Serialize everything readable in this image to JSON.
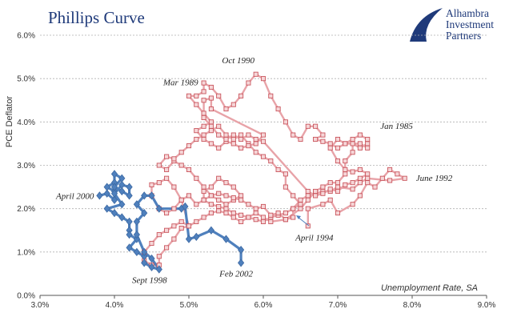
{
  "chart_data": {
    "type": "scatter",
    "title": "Phillips Curve",
    "xlabel": "Unemployment Rate, SA",
    "ylabel": "PCE Deflator",
    "xlim": [
      3.0,
      9.0
    ],
    "ylim": [
      0.0,
      6.0
    ],
    "x_ticks": [
      "3.0%",
      "4.0%",
      "5.0%",
      "6.0%",
      "7.0%",
      "8.0%",
      "9.0%"
    ],
    "y_ticks": [
      "0.0%",
      "1.0%",
      "2.0%",
      "3.0%",
      "4.0%",
      "5.0%",
      "6.0%"
    ],
    "grid": true,
    "series": [
      {
        "color": "#e8a3a8",
        "marker": "square",
        "points": [
          [
            6.6,
            1.6
          ],
          [
            6.6,
            2.0
          ],
          [
            6.8,
            2.1
          ],
          [
            6.9,
            2.2
          ],
          [
            7.0,
            1.9
          ],
          [
            7.2,
            2.1
          ],
          [
            7.3,
            2.3
          ],
          [
            7.4,
            2.6
          ],
          [
            7.5,
            2.5
          ],
          [
            7.6,
            2.7
          ],
          [
            7.7,
            2.9
          ],
          [
            7.8,
            2.8
          ],
          [
            7.9,
            2.7
          ],
          [
            7.7,
            2.65
          ],
          [
            7.4,
            2.7
          ],
          [
            7.3,
            2.6
          ],
          [
            7.2,
            2.45
          ],
          [
            7.0,
            2.5
          ],
          [
            6.9,
            2.4
          ],
          [
            6.8,
            2.4
          ],
          [
            6.7,
            2.35
          ],
          [
            6.6,
            2.3
          ],
          [
            6.5,
            2.2
          ],
          [
            6.4,
            2.0
          ],
          [
            6.4,
            1.8
          ],
          [
            6.3,
            1.75
          ],
          [
            6.1,
            1.7
          ],
          [
            6.0,
            1.8
          ],
          [
            5.9,
            1.9
          ],
          [
            5.8,
            1.8
          ],
          [
            5.7,
            1.85
          ],
          [
            5.6,
            1.9
          ],
          [
            5.5,
            2.0
          ],
          [
            5.4,
            2.05
          ],
          [
            5.3,
            2.1
          ],
          [
            5.2,
            2.2
          ],
          [
            5.2,
            2.4
          ],
          [
            5.3,
            2.5
          ],
          [
            5.4,
            2.7
          ],
          [
            5.5,
            2.6
          ],
          [
            5.6,
            2.5
          ],
          [
            5.7,
            2.3
          ],
          [
            5.6,
            2.2
          ],
          [
            5.5,
            2.1
          ],
          [
            5.4,
            2.2
          ],
          [
            5.3,
            2.3
          ],
          [
            5.2,
            2.5
          ],
          [
            5.1,
            2.7
          ],
          [
            5.0,
            2.9
          ],
          [
            4.9,
            3.0
          ],
          [
            4.8,
            3.1
          ],
          [
            4.7,
            2.9
          ],
          [
            4.6,
            3.0
          ],
          [
            4.7,
            3.2
          ],
          [
            4.8,
            3.15
          ],
          [
            4.9,
            3.3
          ],
          [
            5.0,
            3.45
          ],
          [
            5.1,
            3.6
          ],
          [
            5.2,
            3.7
          ],
          [
            5.3,
            3.8
          ],
          [
            5.4,
            3.9
          ],
          [
            5.5,
            3.7
          ],
          [
            5.6,
            3.6
          ],
          [
            5.7,
            3.7
          ],
          [
            5.8,
            3.5
          ],
          [
            5.9,
            3.3
          ],
          [
            6.0,
            3.2
          ],
          [
            6.1,
            3.1
          ],
          [
            6.2,
            2.9
          ],
          [
            6.3,
            2.8
          ],
          [
            6.3,
            2.5
          ],
          [
            6.4,
            2.3
          ],
          [
            6.5,
            2.1
          ],
          [
            6.4,
            2.0
          ],
          [
            6.3,
            1.9
          ],
          [
            6.2,
            1.85
          ],
          [
            6.1,
            1.8
          ],
          [
            6.0,
            1.7
          ],
          [
            5.9,
            1.75
          ],
          [
            5.8,
            1.8
          ],
          [
            5.7,
            1.7
          ],
          [
            5.6,
            1.8
          ],
          [
            5.5,
            1.9
          ],
          [
            5.4,
            1.95
          ],
          [
            5.3,
            1.9
          ],
          [
            5.2,
            1.8
          ],
          [
            5.1,
            1.7
          ],
          [
            5.0,
            1.6
          ],
          [
            4.9,
            1.7
          ],
          [
            4.8,
            1.6
          ],
          [
            4.7,
            1.5
          ],
          [
            4.6,
            1.4
          ],
          [
            4.5,
            1.2
          ],
          [
            4.4,
            1.0
          ],
          [
            4.4,
            0.8
          ],
          [
            4.5,
            0.7
          ],
          [
            4.6,
            0.7
          ],
          [
            4.6,
            0.9
          ],
          [
            4.7,
            1.1
          ],
          [
            4.8,
            1.3
          ],
          [
            4.9,
            1.55
          ],
          [
            5.0,
            1.6
          ],
          [
            4.9,
            2.2
          ],
          [
            4.8,
            2.5
          ],
          [
            4.7,
            2.7
          ],
          [
            4.6,
            2.6
          ],
          [
            4.5,
            2.55
          ],
          [
            4.5,
            2.3
          ],
          [
            4.6,
            2.0
          ],
          [
            4.7,
            1.9
          ],
          [
            4.8,
            2.0
          ],
          [
            4.9,
            2.2
          ],
          [
            5.0,
            2.3
          ],
          [
            5.1,
            2.1
          ],
          [
            5.2,
            2.2
          ],
          [
            5.3,
            2.3
          ],
          [
            5.4,
            2.35
          ],
          [
            5.5,
            2.3
          ],
          [
            5.6,
            2.25
          ],
          [
            5.7,
            2.2
          ],
          [
            5.8,
            2.1
          ],
          [
            5.9,
            2.0
          ],
          [
            6.0,
            2.05
          ],
          [
            6.1,
            1.85
          ],
          [
            6.2,
            1.9
          ],
          [
            6.3,
            1.75
          ],
          [
            6.5,
            2.0
          ],
          [
            6.6,
            2.2
          ],
          [
            6.7,
            2.4
          ],
          [
            6.8,
            2.5
          ],
          [
            6.9,
            2.6
          ],
          [
            7.0,
            2.6
          ],
          [
            7.1,
            2.8
          ],
          [
            7.1,
            3.1
          ],
          [
            7.2,
            3.3
          ],
          [
            7.2,
            3.5
          ],
          [
            7.3,
            3.4
          ],
          [
            7.4,
            3.5
          ],
          [
            7.4,
            3.6
          ],
          [
            7.3,
            3.7
          ],
          [
            7.2,
            3.6
          ],
          [
            7.1,
            3.5
          ],
          [
            7.0,
            3.4
          ],
          [
            6.9,
            3.5
          ],
          [
            6.8,
            3.55
          ],
          [
            6.7,
            3.6
          ],
          [
            6.8,
            3.7
          ],
          [
            6.7,
            3.9
          ],
          [
            6.6,
            3.9
          ],
          [
            6.5,
            3.6
          ],
          [
            6.4,
            3.7
          ],
          [
            6.3,
            4.0
          ],
          [
            6.2,
            4.3
          ],
          [
            6.1,
            4.6
          ],
          [
            6.0,
            5.0
          ],
          [
            5.9,
            5.1
          ],
          [
            5.8,
            4.9
          ],
          [
            5.7,
            4.6
          ],
          [
            5.6,
            4.4
          ],
          [
            5.5,
            4.3
          ],
          [
            5.4,
            4.6
          ],
          [
            5.3,
            4.8
          ],
          [
            5.2,
            4.9
          ],
          [
            5.2,
            4.7
          ],
          [
            5.1,
            4.6
          ],
          [
            5.0,
            4.6
          ],
          [
            5.1,
            4.4
          ],
          [
            5.2,
            4.2
          ],
          [
            5.3,
            4.0
          ],
          [
            5.2,
            3.9
          ],
          [
            5.1,
            3.8
          ],
          [
            5.2,
            3.6
          ],
          [
            5.3,
            3.5
          ],
          [
            5.4,
            3.4
          ],
          [
            5.5,
            3.55
          ],
          [
            5.6,
            3.5
          ],
          [
            5.7,
            3.4
          ],
          [
            5.8,
            3.45
          ],
          [
            5.9,
            3.5
          ],
          [
            6.0,
            3.7
          ],
          [
            5.3,
            4.3
          ],
          [
            5.3,
            4.55
          ],
          [
            5.2,
            4.5
          ],
          [
            5.2,
            4.1
          ],
          [
            5.3,
            3.9
          ],
          [
            5.4,
            3.7
          ],
          [
            5.5,
            3.6
          ],
          [
            5.6,
            3.7
          ],
          [
            5.7,
            3.6
          ],
          [
            5.8,
            3.7
          ],
          [
            5.9,
            3.6
          ],
          [
            6.0,
            3.55
          ],
          [
            6.6,
            2.4
          ],
          [
            6.7,
            2.3
          ],
          [
            6.8,
            2.35
          ],
          [
            6.9,
            2.45
          ],
          [
            7.0,
            2.4
          ],
          [
            7.1,
            2.55
          ],
          [
            7.2,
            2.6
          ],
          [
            7.3,
            2.7
          ],
          [
            7.4,
            2.8
          ],
          [
            7.3,
            2.9
          ],
          [
            7.2,
            2.85
          ],
          [
            7.1,
            2.9
          ],
          [
            7.0,
            3.1
          ],
          [
            6.9,
            3.4
          ],
          [
            7.0,
            3.6
          ],
          [
            7.1,
            3.5
          ],
          [
            7.3,
            3.5
          ],
          [
            7.4,
            3.4
          ]
        ]
      },
      {
        "color": "#4f80bd",
        "marker": "diamond",
        "points": [
          [
            3.8,
            2.3
          ],
          [
            3.9,
            2.35
          ],
          [
            4.0,
            2.2
          ],
          [
            4.0,
            2.4
          ],
          [
            3.9,
            2.5
          ],
          [
            4.0,
            2.6
          ],
          [
            4.0,
            2.8
          ],
          [
            4.1,
            2.7
          ],
          [
            4.0,
            2.5
          ],
          [
            4.1,
            2.4
          ],
          [
            4.2,
            2.3
          ],
          [
            4.2,
            2.5
          ],
          [
            4.1,
            2.55
          ],
          [
            4.0,
            2.35
          ],
          [
            4.1,
            2.1
          ],
          [
            3.9,
            2.0
          ],
          [
            4.0,
            1.9
          ],
          [
            4.1,
            1.8
          ],
          [
            4.2,
            1.7
          ],
          [
            4.2,
            1.5
          ],
          [
            4.2,
            1.4
          ],
          [
            4.3,
            1.3
          ],
          [
            4.2,
            1.1
          ],
          [
            4.3,
            1.0
          ],
          [
            4.4,
            0.9
          ],
          [
            4.4,
            0.75
          ],
          [
            4.5,
            0.65
          ],
          [
            4.6,
            0.6
          ],
          [
            4.5,
            0.85
          ],
          [
            4.4,
            1.0
          ],
          [
            4.3,
            1.4
          ],
          [
            4.3,
            1.7
          ],
          [
            4.4,
            1.9
          ],
          [
            4.3,
            2.1
          ],
          [
            4.4,
            2.3
          ],
          [
            4.5,
            2.3
          ],
          [
            4.6,
            2.0
          ],
          [
            4.9,
            2.0
          ],
          [
            4.95,
            2.05
          ],
          [
            5.0,
            1.3
          ],
          [
            5.1,
            1.35
          ],
          [
            5.3,
            1.5
          ],
          [
            5.5,
            1.3
          ],
          [
            5.7,
            1.05
          ],
          [
            5.7,
            0.75
          ]
        ]
      }
    ],
    "annotations": [
      {
        "text": "Oct 1990",
        "x": 5.9,
        "y": 5.1
      },
      {
        "text": "Mar 1989",
        "x": 5.2,
        "y": 4.9
      },
      {
        "text": "Jan 1985",
        "x": 7.4,
        "y": 3.6
      },
      {
        "text": "June 1992",
        "x": 7.9,
        "y": 2.7
      },
      {
        "text": "April 2000",
        "x": 3.8,
        "y": 2.3
      },
      {
        "text": "April 1994",
        "x": 6.6,
        "y": 1.6
      },
      {
        "text": "Sept 1998",
        "x": 4.6,
        "y": 0.6
      },
      {
        "text": "Feb 2002",
        "x": 5.7,
        "y": 0.75
      }
    ],
    "legend": "none"
  },
  "logo": {
    "lines": [
      "Alhambra",
      "Investment",
      "Partners"
    ],
    "icon": "alhambra-logo-icon",
    "color": "#1f3a7a"
  }
}
